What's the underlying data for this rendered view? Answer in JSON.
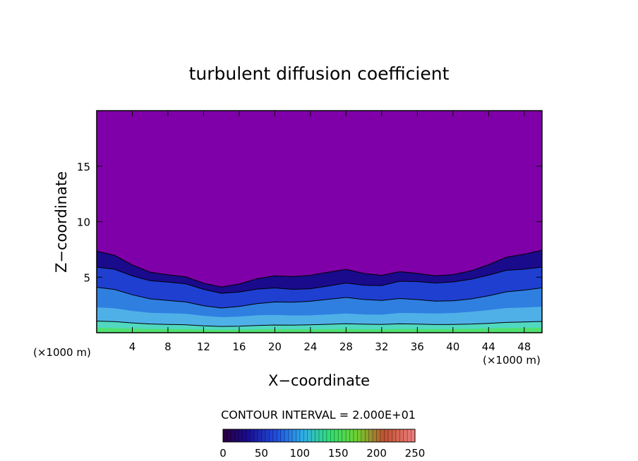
{
  "chart_data": {
    "type": "heatmap",
    "title": "turbulent diffusion coefficient",
    "xlabel": "X−coordinate",
    "ylabel": "Z−coordinate",
    "x_unit": "(×1000 m)",
    "z_unit": "(×1000 m)",
    "xlim": [
      0,
      50
    ],
    "ylim": [
      0,
      20
    ],
    "x_ticks": [
      4,
      8,
      12,
      16,
      20,
      24,
      28,
      32,
      36,
      40,
      44,
      48
    ],
    "y_ticks": [
      5,
      10,
      15
    ],
    "contour_interval_text": "CONTOUR INTERVAL = 2.000E+01",
    "contour_interval": 20,
    "colorbar": {
      "min": 0,
      "max": 250,
      "ticks": [
        0,
        50,
        100,
        150,
        200,
        250
      ]
    },
    "colors": {
      "background_value": "#7f00a8",
      "c1": "#1a0a8c",
      "c2": "#1e3fd0",
      "c3": "#2f7fe0",
      "c4": "#4fb0e8",
      "c5": "#50d8c0",
      "c6": "#4fe070"
    },
    "turbulent_layer_top": [
      [
        0,
        7.3
      ],
      [
        2,
        7.0
      ],
      [
        4,
        6.2
      ],
      [
        6,
        5.6
      ],
      [
        8,
        5.4
      ],
      [
        10,
        5.2
      ],
      [
        12,
        4.6
      ],
      [
        14,
        4.2
      ],
      [
        16,
        4.4
      ],
      [
        18,
        4.8
      ],
      [
        20,
        5.0
      ],
      [
        22,
        4.9
      ],
      [
        24,
        5.0
      ],
      [
        26,
        5.3
      ],
      [
        28,
        5.6
      ],
      [
        30,
        5.3
      ],
      [
        32,
        5.2
      ],
      [
        34,
        5.6
      ],
      [
        36,
        5.5
      ],
      [
        38,
        5.3
      ],
      [
        40,
        5.4
      ],
      [
        42,
        5.7
      ],
      [
        44,
        6.2
      ],
      [
        46,
        6.8
      ],
      [
        48,
        7.0
      ],
      [
        50,
        7.3
      ]
    ]
  }
}
